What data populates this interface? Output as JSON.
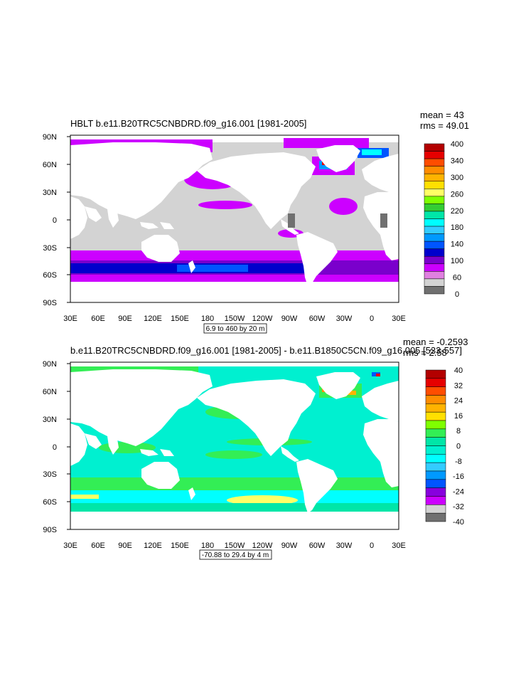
{
  "panels": [
    {
      "title": "HBLT b.e11.B20TRC5CNBDRD.f09_g16.001 [1981-2005]",
      "mean_text": "mean = 43",
      "rms_text": "rms = 49.01",
      "info_text": "6.9 to 460 by 20 m",
      "lat_labels": [
        "90N",
        "60N",
        "30N",
        "0",
        "30S",
        "60S",
        "90S"
      ],
      "lon_labels": [
        "30E",
        "60E",
        "90E",
        "120E",
        "150E",
        "180",
        "150W",
        "120W",
        "90W",
        "60W",
        "30W",
        "0",
        "30E"
      ],
      "colorbar": {
        "labels": [
          "400",
          "340",
          "300",
          "260",
          "220",
          "180",
          "140",
          "100",
          "60",
          "0"
        ],
        "colors": [
          "#b30000",
          "#e60000",
          "#ff4d00",
          "#ff8c00",
          "#ffb300",
          "#ffe000",
          "#ffff66",
          "#7fff00",
          "#33cc33",
          "#00e6a8",
          "#00ffff",
          "#33ccff",
          "#0099ff",
          "#0055ff",
          "#0000cc",
          "#7a00cc",
          "#cc00ff",
          "#e080e0",
          "#d3d3d3",
          "#707070"
        ]
      }
    },
    {
      "title": "b.e11.B20TRC5CNBDRD.f09_g16.001 [1981-2005] - b.e11.B1850C5CN.f09_g16.005 [533-557]",
      "mean_text": "mean = -0.2593",
      "rms_text": "rms = 2.58",
      "info_text": "-70.88 to 29.4 by 4 m",
      "lat_labels": [
        "90N",
        "60N",
        "30N",
        "0",
        "30S",
        "60S",
        "90S"
      ],
      "lon_labels": [
        "30E",
        "60E",
        "90E",
        "120E",
        "150E",
        "180",
        "150W",
        "120W",
        "90W",
        "60W",
        "30W",
        "0",
        "30E"
      ],
      "colorbar": {
        "labels": [
          "40",
          "32",
          "24",
          "16",
          "8",
          "0",
          "-8",
          "-16",
          "-24",
          "-32",
          "-40"
        ],
        "colors": [
          "#b30000",
          "#e60000",
          "#ff4d00",
          "#ff8c00",
          "#ffb300",
          "#ffe000",
          "#7fff00",
          "#33ee55",
          "#00e6a8",
          "#00f0d0",
          "#00ffff",
          "#33ccff",
          "#0099ff",
          "#0055ff",
          "#8800dd",
          "#cc00ff",
          "#d3d3d3",
          "#707070"
        ]
      }
    }
  ]
}
